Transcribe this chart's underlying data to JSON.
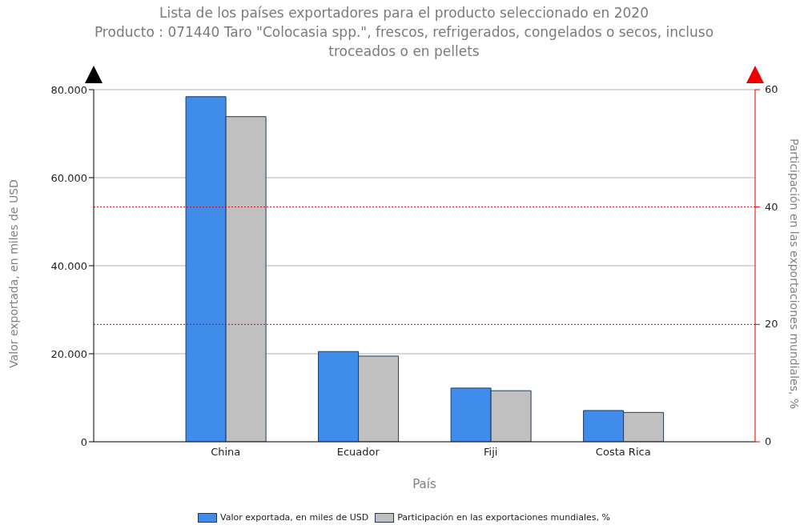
{
  "chart_data": {
    "type": "bar",
    "title": "Lista de los países exportadores para el producto seleccionado en 2020",
    "subtitle": "Producto : 071440 Taro \"Colocasia spp.\", frescos, refrigerados, congelados o secos, incluso troceados o en pellets",
    "xlabel": "País",
    "ylabel": "Valor exportada, en miles de USD",
    "y2label": "Participación en las exportaciones mundiales, %",
    "categories": [
      "China",
      "Ecuador",
      "Fiji",
      "Costa Rica"
    ],
    "series": [
      {
        "name": "Valor exportada, en miles de USD",
        "color": "#3f8ceb",
        "values": [
          78400,
          20500,
          12200,
          7100
        ]
      },
      {
        "name": "Participación en las exportaciones mundiales, %",
        "color": "#c0c0c0",
        "axis": "y2",
        "values": [
          55.4,
          14.6,
          8.7,
          5.0
        ]
      }
    ],
    "ylim": [
      0,
      80000
    ],
    "yticks": [
      {
        "value": 0,
        "label": "0"
      },
      {
        "value": 20000,
        "label": "20.000"
      },
      {
        "value": 40000,
        "label": "40.000"
      },
      {
        "value": 60000,
        "label": "60.000"
      },
      {
        "value": 80000,
        "label": "80.000"
      }
    ],
    "y2lim": [
      0,
      60
    ],
    "y2ticks": [
      0,
      20,
      40,
      60
    ],
    "grid": "y",
    "legend": "bottom"
  }
}
